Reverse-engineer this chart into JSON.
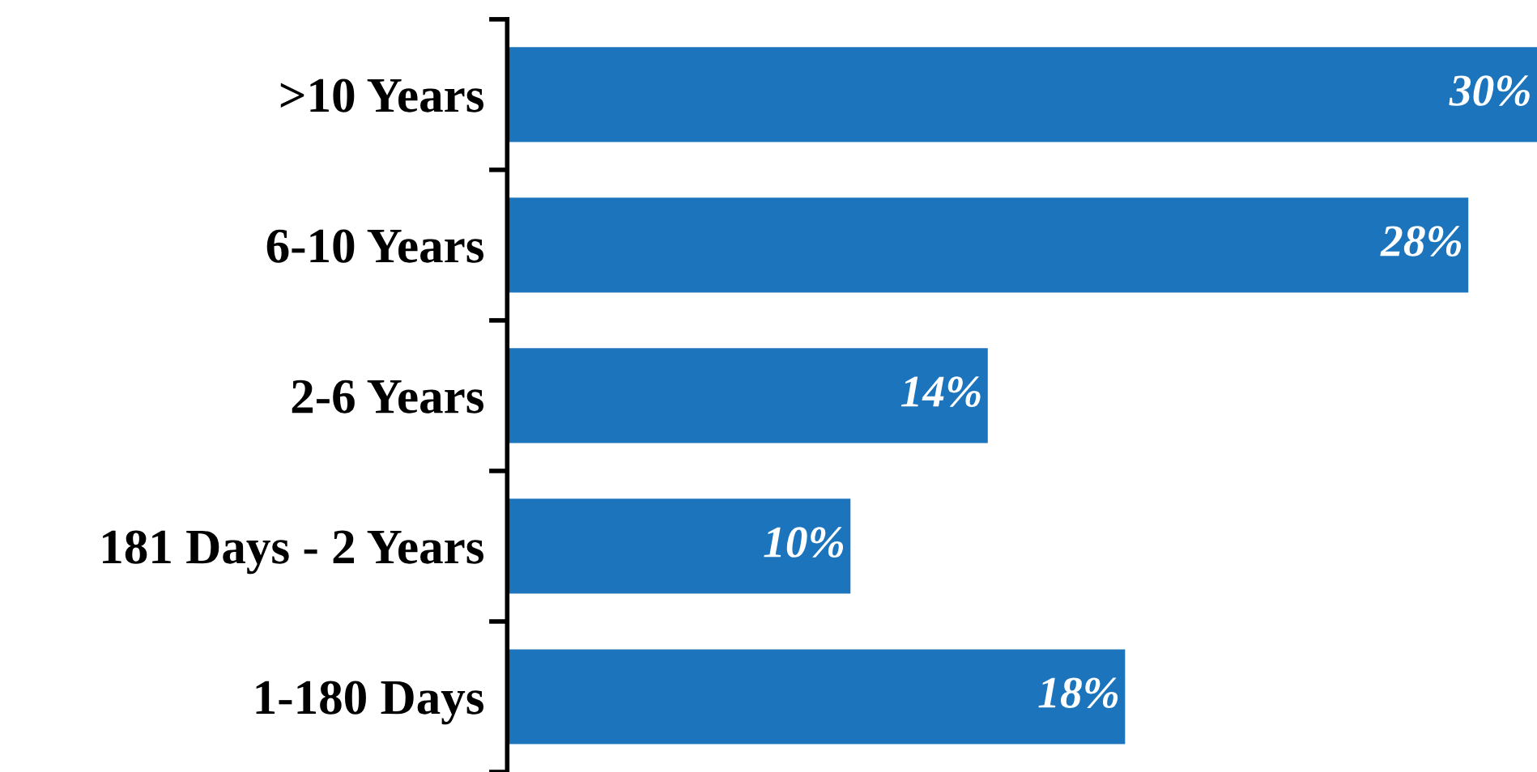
{
  "chart_data": {
    "type": "bar",
    "orientation": "horizontal",
    "categories": [
      ">10 Years",
      "6-10 Years",
      "2-6 Years",
      "181 Days - 2 Years",
      "1-180 Days"
    ],
    "values": [
      30,
      28,
      14,
      10,
      18
    ],
    "value_labels": [
      "30%",
      "28%",
      "14%",
      "10%",
      "18%"
    ],
    "color": "#1c75bc",
    "grid": false,
    "legend": false,
    "tick_labels": "y"
  }
}
